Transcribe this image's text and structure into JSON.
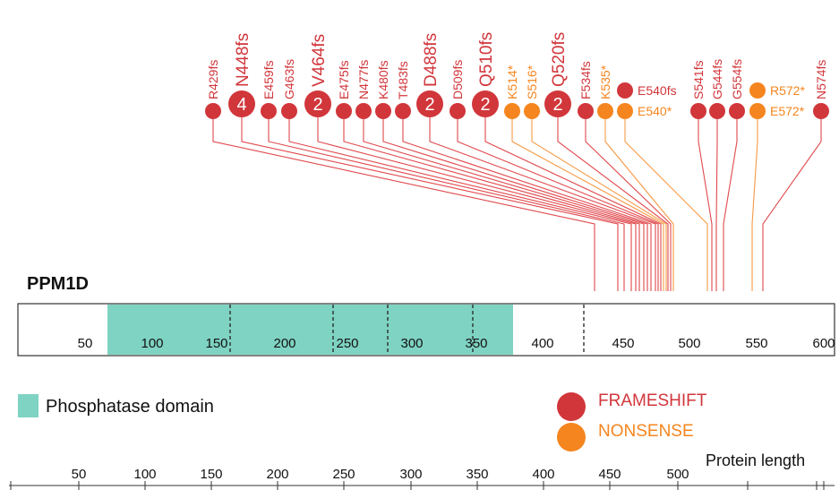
{
  "gene_name": "PPM1D",
  "domain_legend_label": "Phosphatase domain",
  "axis_label": "Protein length",
  "colors": {
    "frameshift": "#d1363b",
    "nonsense": "#f5851e",
    "domain": "#7fd3c3",
    "line_frameshift": "#e0484c",
    "line_nonsense": "#f59a45",
    "dash": "#222222",
    "text": "#111111"
  },
  "legend": [
    {
      "label": "FRAMESHIFT",
      "type": "frameshift"
    },
    {
      "label": "NONSENSE",
      "type": "nonsense"
    }
  ],
  "protein_bar": {
    "tick_labels": [
      "50",
      "100",
      "150",
      "200",
      "250",
      "300",
      "350",
      "400",
      "450",
      "500",
      "550",
      "600"
    ],
    "domain_segments": [
      [
        67,
        166
      ],
      [
        166,
        244
      ],
      [
        244,
        286
      ],
      [
        286,
        350
      ],
      [
        350,
        380
      ]
    ],
    "dashed_boundaries": [
      166,
      244,
      286,
      350,
      430
    ]
  },
  "bottom_axis": {
    "tick_labels": [
      "50",
      "100",
      "150",
      "200",
      "250",
      "300",
      "350",
      "400",
      "450",
      "500"
    ]
  },
  "mutations": [
    {
      "label": "R429fs",
      "type": "frameshift",
      "count": 1,
      "position": 429
    },
    {
      "label": "N448fs",
      "type": "frameshift",
      "count": 4,
      "position": 448
    },
    {
      "label": "E459fs",
      "type": "frameshift",
      "count": 1,
      "position": 459
    },
    {
      "label": "G463fs",
      "type": "frameshift",
      "count": 1,
      "position": 463
    },
    {
      "label": "V464fs",
      "type": "frameshift",
      "count": 2,
      "position": 464
    },
    {
      "label": "E475fs",
      "type": "frameshift",
      "count": 1,
      "position": 475
    },
    {
      "label": "N477fs",
      "type": "frameshift",
      "count": 1,
      "position": 477
    },
    {
      "label": "K480fs",
      "type": "frameshift",
      "count": 1,
      "position": 480
    },
    {
      "label": "T483fs",
      "type": "frameshift",
      "count": 1,
      "position": 483
    },
    {
      "label": "D488fs",
      "type": "frameshift",
      "count": 2,
      "position": 488
    },
    {
      "label": "D509fs",
      "type": "frameshift",
      "count": 1,
      "position": 509
    },
    {
      "label": "Q510fs",
      "type": "frameshift",
      "count": 2,
      "position": 510
    },
    {
      "label": "K514*",
      "type": "nonsense",
      "count": 1,
      "position": 514
    },
    {
      "label": "S516*",
      "type": "nonsense",
      "count": 1,
      "position": 516
    },
    {
      "label": "Q520fs",
      "type": "frameshift",
      "count": 2,
      "position": 520
    },
    {
      "label": "F534fs",
      "type": "frameshift",
      "count": 1,
      "position": 534
    },
    {
      "label": "K535*",
      "type": "nonsense",
      "count": 1,
      "position": 535
    },
    {
      "label": "E540fs",
      "type": "frameshift",
      "count": 1,
      "position": 540
    },
    {
      "label": "E540*",
      "type": "nonsense",
      "count": 1,
      "position": 540
    },
    {
      "label": "S541fs",
      "type": "frameshift",
      "count": 1,
      "position": 541
    },
    {
      "label": "G544fs",
      "type": "frameshift",
      "count": 1,
      "position": 544
    },
    {
      "label": "G554fs",
      "type": "frameshift",
      "count": 1,
      "position": 554
    },
    {
      "label": "R572*",
      "type": "nonsense",
      "count": 1,
      "position": 572
    },
    {
      "label": "E572*",
      "type": "nonsense",
      "count": 1,
      "position": 572
    },
    {
      "label": "N574fs",
      "type": "frameshift",
      "count": 1,
      "position": 574
    }
  ]
}
